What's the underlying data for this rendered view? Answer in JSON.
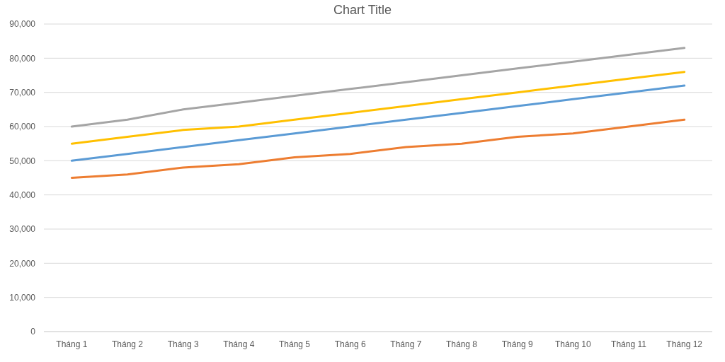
{
  "chart_data": {
    "type": "line",
    "title": "Chart Title",
    "categories": [
      "Tháng 1",
      "Tháng 2",
      "Tháng 3",
      "Tháng 4",
      "Tháng 5",
      "Tháng 6",
      "Tháng 7",
      "Tháng 8",
      "Tháng 9",
      "Tháng 10",
      "Tháng 11",
      "Tháng 12"
    ],
    "series": [
      {
        "color": "#5b9bd5",
        "values": [
          50000,
          52000,
          54000,
          56000,
          58000,
          60000,
          62000,
          64000,
          66000,
          68000,
          70000,
          72000
        ]
      },
      {
        "color": "#ed7d31",
        "values": [
          45000,
          46000,
          48000,
          49000,
          51000,
          52000,
          54000,
          55000,
          57000,
          58000,
          60000,
          62000
        ]
      },
      {
        "color": "#a5a5a5",
        "values": [
          60000,
          62000,
          65000,
          67000,
          69000,
          71000,
          73000,
          75000,
          77000,
          79000,
          81000,
          83000
        ]
      },
      {
        "color": "#ffc000",
        "values": [
          55000,
          57000,
          59000,
          60000,
          62000,
          64000,
          66000,
          68000,
          70000,
          72000,
          74000,
          76000
        ]
      }
    ],
    "ylim": [
      0,
      90000
    ],
    "yticks": [
      {
        "value": 0,
        "label": "0"
      },
      {
        "value": 10000,
        "label": "10,000"
      },
      {
        "value": 20000,
        "label": "20,000"
      },
      {
        "value": 30000,
        "label": "30,000"
      },
      {
        "value": 40000,
        "label": "40,000"
      },
      {
        "value": 50000,
        "label": "50,000"
      },
      {
        "value": 60000,
        "label": "60,000"
      },
      {
        "value": 70000,
        "label": "70,000"
      },
      {
        "value": 80000,
        "label": "80,000"
      },
      {
        "value": 90000,
        "label": "90,000"
      }
    ],
    "grid": "y",
    "marker": "none",
    "line_style": "solid"
  }
}
